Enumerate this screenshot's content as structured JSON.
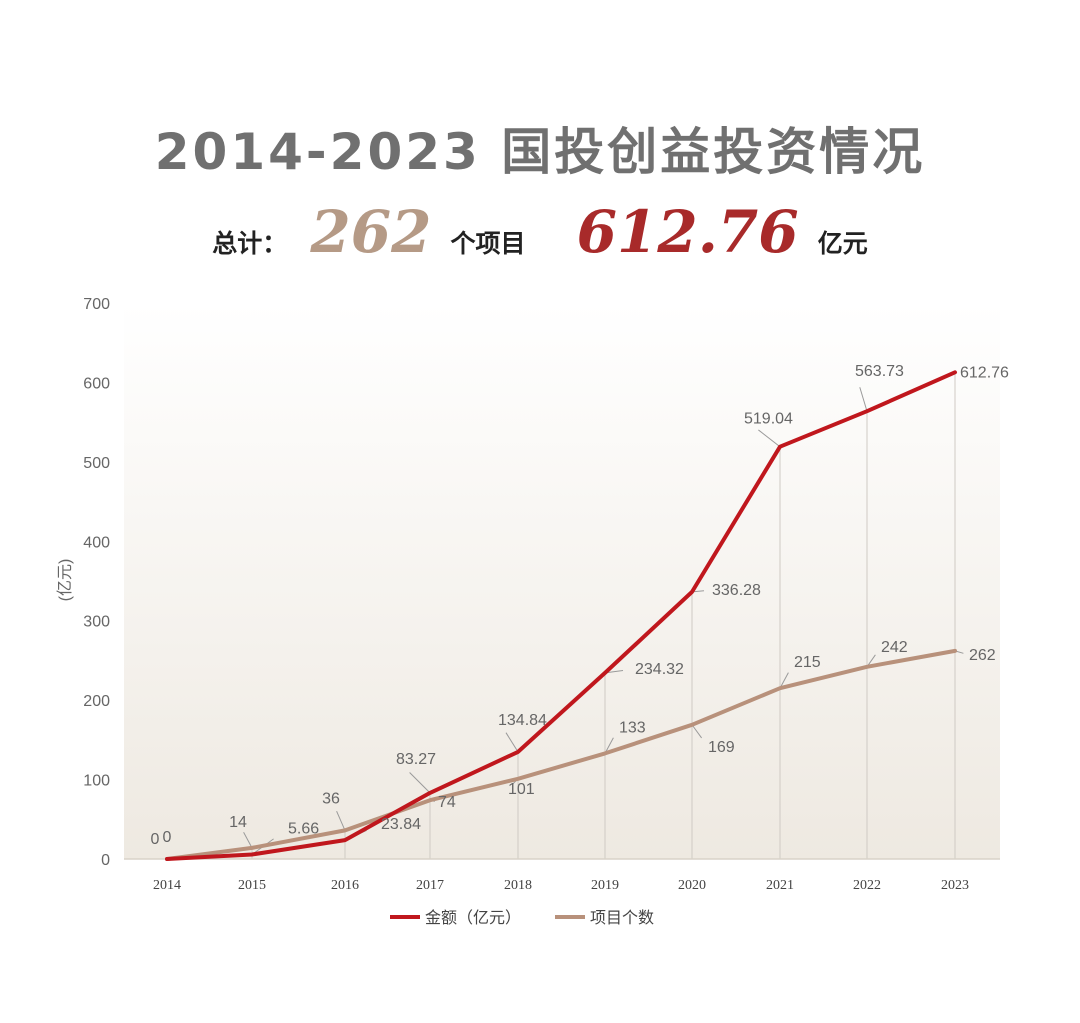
{
  "title": "2014-2023 国投创益投资情况",
  "summary": {
    "label": "总计：",
    "project_count": "262",
    "project_unit": "个项目",
    "amount": "612.76",
    "amount_unit": "亿元"
  },
  "colors": {
    "amount_series": "#c0171d",
    "count_series": "#b8917b",
    "amount_highlight": "#a82a2a",
    "count_highlight": "#b59a86"
  },
  "chart_data": {
    "type": "line",
    "ylabel": "(亿元)",
    "ylim": [
      0,
      700
    ],
    "yticks": [
      0,
      100,
      200,
      300,
      400,
      500,
      600,
      700
    ],
    "categories": [
      "2014",
      "2015",
      "2016",
      "2017",
      "2018",
      "2019",
      "2020",
      "2021",
      "2022",
      "2023"
    ],
    "grid": "vertical guide lines at each year",
    "legend_position": "bottom",
    "series": [
      {
        "name": "金额（亿元）",
        "values": [
          0,
          5.66,
          23.84,
          83.27,
          134.84,
          234.32,
          336.28,
          519.04,
          563.73,
          612.76
        ],
        "labels": [
          "0",
          "5.66",
          "23.84",
          "83.27",
          "134.84",
          "234.32",
          "336.28",
          "519.04",
          "563.73",
          "612.76"
        ]
      },
      {
        "name": "项目个数",
        "values": [
          0,
          14,
          36,
          74,
          101,
          133,
          169,
          215,
          242,
          262
        ],
        "labels": [
          "0",
          "14",
          "36",
          "74",
          "101",
          "133",
          "169",
          "215",
          "242",
          "262"
        ]
      }
    ]
  }
}
